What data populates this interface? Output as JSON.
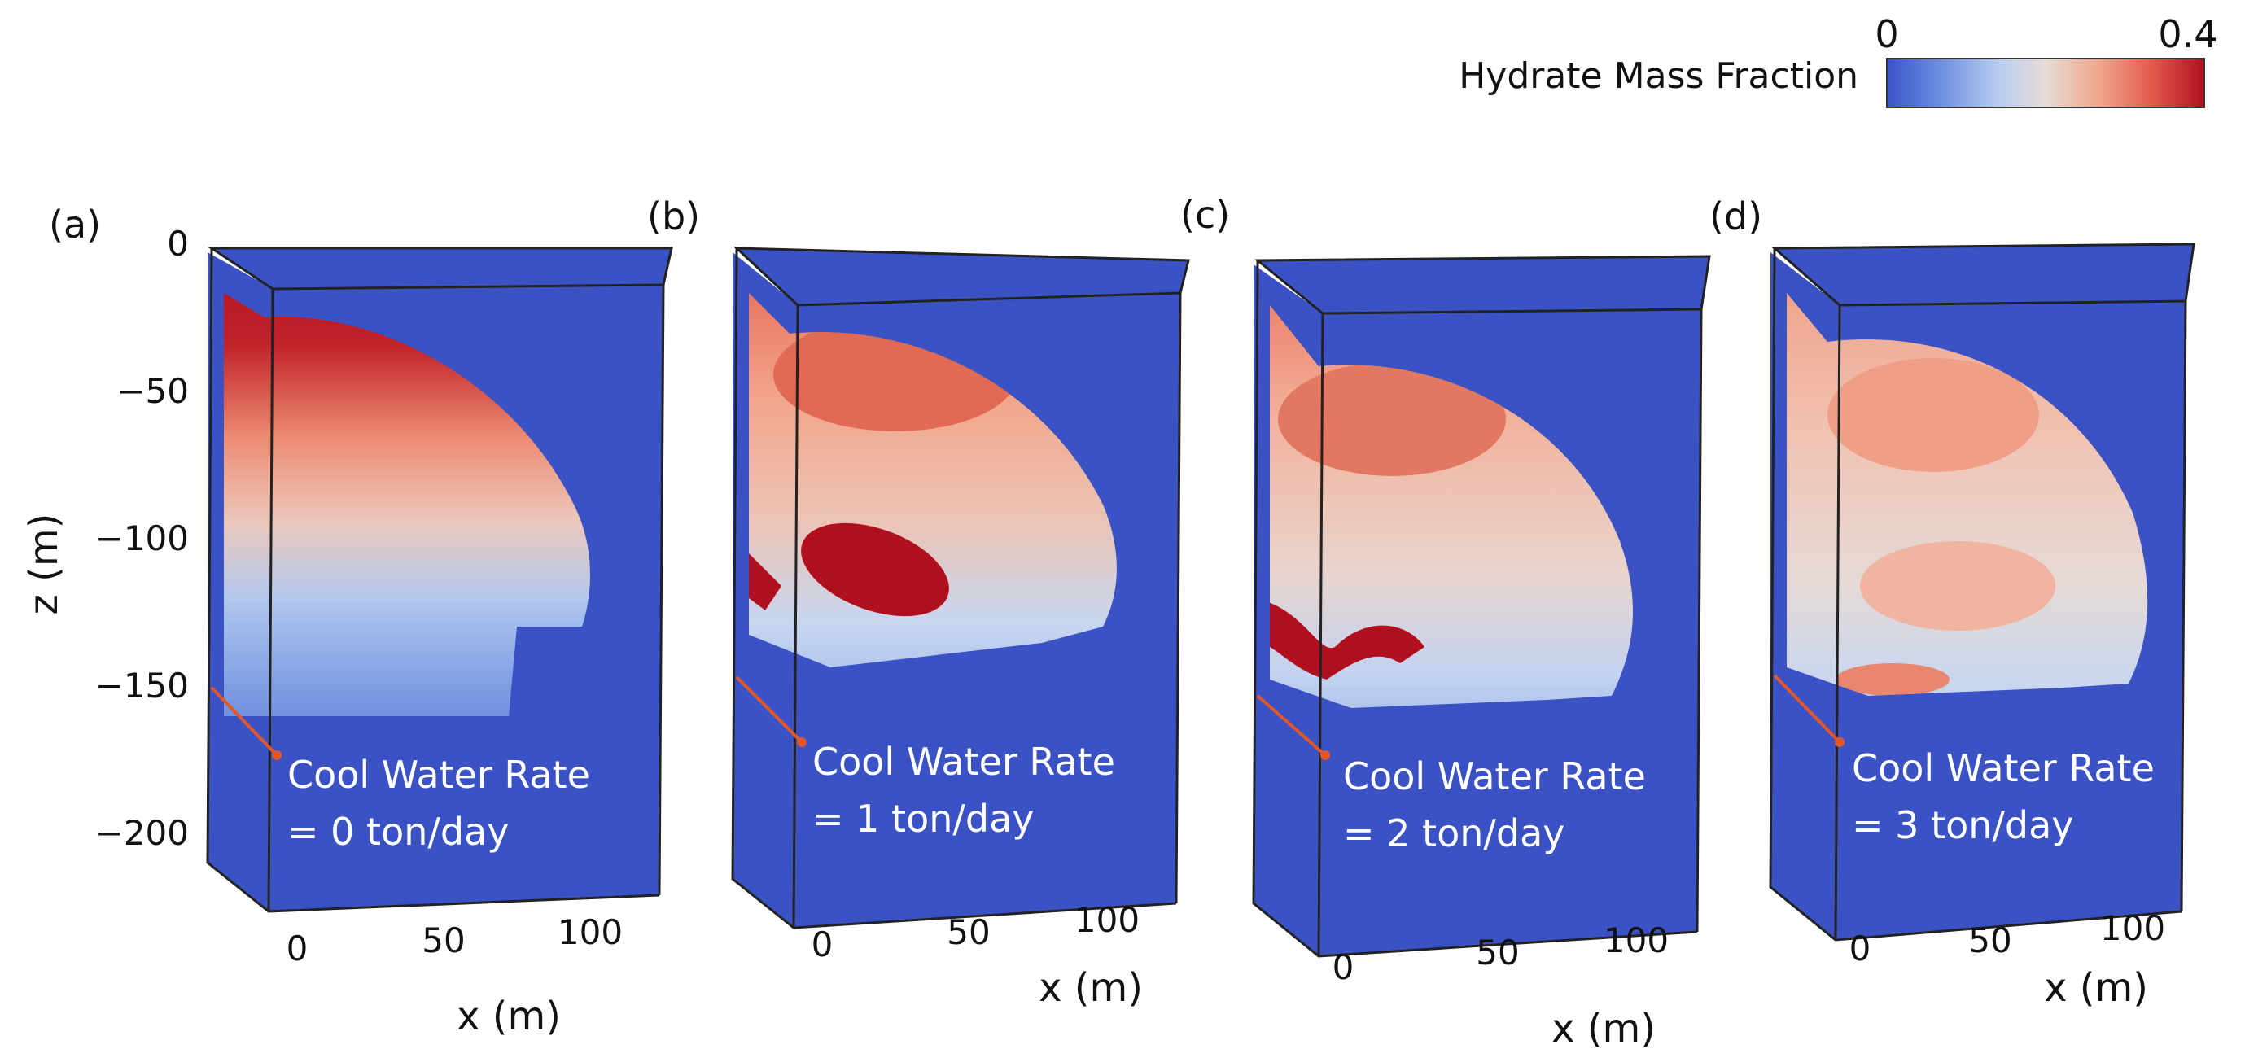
{
  "chart_data": {
    "type": "heatmap",
    "title": "",
    "colorbar": {
      "label": "Hydrate Mass Fraction",
      "min_label": "0",
      "max_label": "0.4",
      "range": [
        0,
        0.4
      ],
      "colors": [
        "#3a53c8",
        "#6d8fe2",
        "#b8cdf0",
        "#e8dcd6",
        "#f1a68c",
        "#e2574a",
        "#b0101e"
      ]
    },
    "z_axis": {
      "label": "z (m)",
      "ticks": [
        "0",
        "−50",
        "−100",
        "−150",
        "−200"
      ],
      "range": [
        -210,
        0
      ]
    },
    "x_axis": {
      "label": "x (m)",
      "ticks": [
        "0",
        "50",
        "100"
      ],
      "range": [
        0,
        125
      ]
    },
    "panels": [
      {
        "label": "(a)",
        "rate_line1": "Cool Water Rate",
        "rate_line2": "= 0 ton/day",
        "cool_water_rate_ton_per_day": 0
      },
      {
        "label": "(b)",
        "rate_line1": "Cool Water Rate",
        "rate_line2": "= 1 ton/day",
        "cool_water_rate_ton_per_day": 1
      },
      {
        "label": "(c)",
        "rate_line1": "Cool Water Rate",
        "rate_line2": "= 2 ton/day",
        "cool_water_rate_ton_per_day": 2
      },
      {
        "label": "(d)",
        "rate_line1": "Cool Water Rate",
        "rate_line2": "= 3 ton/day",
        "cool_water_rate_ton_per_day": 3
      }
    ]
  }
}
